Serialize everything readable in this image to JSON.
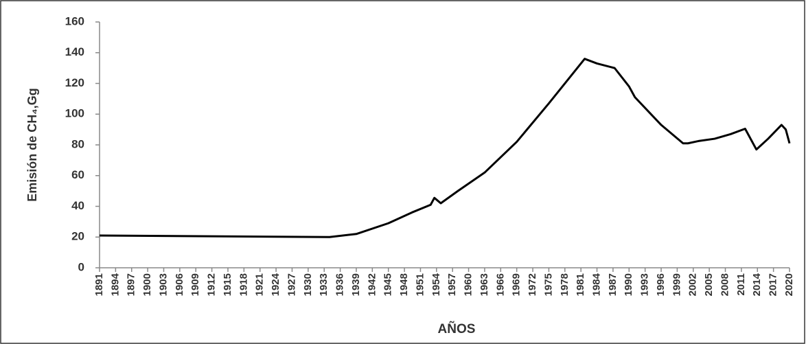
{
  "chart_data": {
    "type": "line",
    "x_label": "AÑOS",
    "y_label": "Emisión de CH₄,Gg",
    "x": [
      1891,
      1934,
      1939,
      1945,
      1949.4,
      1952.9,
      1953.6,
      1954.8,
      1958,
      1963,
      1969,
      1975,
      1981.7,
      1984,
      1987.3,
      1990,
      1991.1,
      1996,
      2000.1,
      2001,
      2003,
      2006,
      2009,
      2011.7,
      2013.8,
      2016,
      2018.5,
      2019.3,
      2020
    ],
    "series": [
      {
        "name": "Emisión de CH₄",
        "color": "#000000",
        "values": [
          21,
          20,
          22,
          29,
          36,
          41,
          45.5,
          42,
          50,
          62,
          82,
          107,
          136,
          133,
          130,
          118,
          111,
          93,
          81,
          81,
          82.5,
          84,
          87,
          90.5,
          77,
          84,
          93,
          90,
          81
        ]
      }
    ],
    "xlim": [
      1891,
      2020
    ],
    "xticks": [
      1891,
      1894,
      1897,
      1900,
      1903,
      1906,
      1909,
      1912,
      1915,
      1918,
      1921,
      1924,
      1927,
      1930,
      1933,
      1936,
      1939,
      1942,
      1945,
      1948,
      1951,
      1954,
      1957,
      1960,
      1963,
      1966,
      1969,
      1972,
      1975,
      1978,
      1981,
      1984,
      1987,
      1990,
      1993,
      1996,
      1999,
      2002,
      2005,
      2008,
      2011,
      2014,
      2017,
      2020
    ],
    "ylim": [
      0,
      160
    ],
    "yticks": [
      0,
      20,
      40,
      60,
      80,
      100,
      120,
      140,
      160
    ]
  }
}
